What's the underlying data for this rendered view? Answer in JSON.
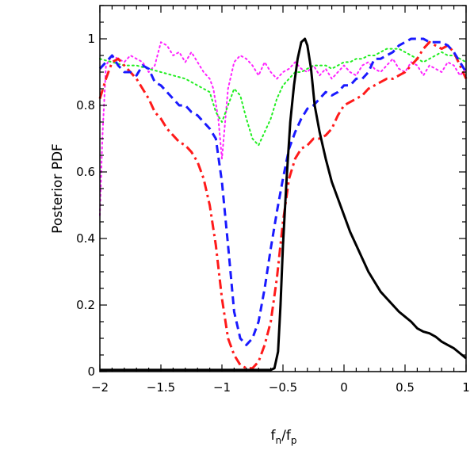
{
  "chart_data": {
    "type": "line",
    "title": "",
    "xlabel": "f_n/f_p",
    "xlabel_main": "f",
    "xlabel_sub1": "n",
    "xlabel_sep": "/f",
    "xlabel_sub2": "p",
    "ylabel": "Posterior PDF",
    "xlim": [
      -2,
      1
    ],
    "ylim": [
      0,
      1.1
    ],
    "grid": false,
    "legend": "none",
    "xticks": [
      {
        "value": -2,
        "label": "−2"
      },
      {
        "value": -1.5,
        "label": "−1.5"
      },
      {
        "value": -1,
        "label": "−1"
      },
      {
        "value": -0.5,
        "label": "−0.5"
      },
      {
        "value": 0,
        "label": "0"
      },
      {
        "value": 0.5,
        "label": "0.5"
      },
      {
        "value": 1,
        "label": "1"
      }
    ],
    "yticks": [
      {
        "value": 0,
        "label": "0"
      },
      {
        "value": 0.2,
        "label": "0.2"
      },
      {
        "value": 0.4,
        "label": "0.4"
      },
      {
        "value": 0.6,
        "label": "0.6"
      },
      {
        "value": 0.8,
        "label": "0.8"
      },
      {
        "value": 1,
        "label": "1"
      }
    ],
    "series": [
      {
        "color": "#000000",
        "style": "solid",
        "width": 3,
        "x": [
          -2,
          -1.5,
          -1,
          -0.6,
          -0.57,
          -0.54,
          -0.52,
          -0.5,
          -0.47,
          -0.44,
          -0.41,
          -0.38,
          -0.35,
          -0.32,
          -0.3,
          -0.27,
          -0.24,
          -0.2,
          -0.15,
          -0.1,
          -0.05,
          0,
          0.05,
          0.1,
          0.15,
          0.2,
          0.25,
          0.3,
          0.35,
          0.4,
          0.45,
          0.5,
          0.55,
          0.6,
          0.65,
          0.7,
          0.75,
          0.8,
          0.85,
          0.9,
          0.95,
          1
        ],
        "y": [
          0.005,
          0.005,
          0.005,
          0.005,
          0.01,
          0.06,
          0.2,
          0.38,
          0.58,
          0.75,
          0.86,
          0.94,
          0.99,
          1.0,
          0.98,
          0.91,
          0.8,
          0.72,
          0.64,
          0.57,
          0.52,
          0.47,
          0.42,
          0.38,
          0.34,
          0.3,
          0.27,
          0.24,
          0.22,
          0.2,
          0.18,
          0.165,
          0.15,
          0.13,
          0.12,
          0.115,
          0.105,
          0.09,
          0.08,
          0.07,
          0.055,
          0.04
        ]
      },
      {
        "color": "#1a1aff",
        "style": "dashed",
        "width": 3,
        "x": [
          -2,
          -1.95,
          -1.9,
          -1.85,
          -1.8,
          -1.75,
          -1.7,
          -1.65,
          -1.6,
          -1.55,
          -1.5,
          -1.45,
          -1.4,
          -1.35,
          -1.3,
          -1.25,
          -1.2,
          -1.15,
          -1.1,
          -1.05,
          -1,
          -0.95,
          -0.9,
          -0.85,
          -0.8,
          -0.75,
          -0.7,
          -0.65,
          -0.6,
          -0.55,
          -0.5,
          -0.45,
          -0.4,
          -0.35,
          -0.3,
          -0.25,
          -0.2,
          -0.15,
          -0.1,
          -0.05,
          0,
          0.05,
          0.1,
          0.15,
          0.2,
          0.25,
          0.3,
          0.35,
          0.4,
          0.45,
          0.5,
          0.55,
          0.6,
          0.65,
          0.7,
          0.75,
          0.8,
          0.85,
          0.9,
          0.95,
          1
        ],
        "y": [
          0.91,
          0.93,
          0.95,
          0.92,
          0.9,
          0.9,
          0.89,
          0.92,
          0.91,
          0.87,
          0.86,
          0.84,
          0.82,
          0.8,
          0.8,
          0.78,
          0.77,
          0.75,
          0.73,
          0.7,
          0.57,
          0.38,
          0.18,
          0.1,
          0.08,
          0.1,
          0.15,
          0.25,
          0.37,
          0.48,
          0.58,
          0.67,
          0.72,
          0.76,
          0.79,
          0.8,
          0.82,
          0.84,
          0.83,
          0.84,
          0.86,
          0.86,
          0.88,
          0.88,
          0.9,
          0.94,
          0.94,
          0.95,
          0.96,
          0.98,
          0.99,
          1.0,
          1.0,
          1.0,
          0.99,
          0.99,
          0.99,
          0.98,
          0.96,
          0.93,
          0.9
        ]
      },
      {
        "color": "#ff1a1a",
        "style": "dashdot",
        "width": 3,
        "x": [
          -2,
          -1.95,
          -1.9,
          -1.85,
          -1.8,
          -1.75,
          -1.7,
          -1.65,
          -1.6,
          -1.55,
          -1.5,
          -1.45,
          -1.4,
          -1.35,
          -1.3,
          -1.25,
          -1.2,
          -1.15,
          -1.1,
          -1.05,
          -1,
          -0.95,
          -0.9,
          -0.85,
          -0.8,
          -0.75,
          -0.7,
          -0.65,
          -0.6,
          -0.55,
          -0.5,
          -0.45,
          -0.4,
          -0.35,
          -0.3,
          -0.25,
          -0.2,
          -0.15,
          -0.1,
          -0.05,
          0,
          0.05,
          0.1,
          0.15,
          0.2,
          0.25,
          0.3,
          0.35,
          0.4,
          0.45,
          0.5,
          0.55,
          0.6,
          0.65,
          0.7,
          0.75,
          0.8,
          0.85,
          0.9,
          0.95,
          1
        ],
        "y": [
          0.82,
          0.88,
          0.93,
          0.94,
          0.92,
          0.9,
          0.88,
          0.85,
          0.82,
          0.78,
          0.76,
          0.73,
          0.71,
          0.69,
          0.68,
          0.66,
          0.63,
          0.58,
          0.5,
          0.38,
          0.22,
          0.1,
          0.05,
          0.02,
          0.01,
          0.01,
          0.03,
          0.08,
          0.15,
          0.28,
          0.45,
          0.58,
          0.64,
          0.67,
          0.68,
          0.7,
          0.7,
          0.71,
          0.73,
          0.77,
          0.8,
          0.81,
          0.82,
          0.83,
          0.85,
          0.86,
          0.87,
          0.88,
          0.88,
          0.89,
          0.9,
          0.92,
          0.94,
          0.97,
          0.99,
          0.98,
          0.97,
          0.98,
          0.96,
          0.92,
          0.88
        ]
      },
      {
        "color": "#22ee22",
        "style": "dotted",
        "width": 2,
        "x": [
          -2,
          -1.9,
          -1.8,
          -1.7,
          -1.6,
          -1.5,
          -1.4,
          -1.3,
          -1.2,
          -1.1,
          -1.05,
          -1,
          -0.95,
          -0.9,
          -0.85,
          -0.8,
          -0.75,
          -0.7,
          -0.65,
          -0.6,
          -0.55,
          -0.5,
          -0.45,
          -0.4,
          -0.35,
          -0.3,
          -0.25,
          -0.2,
          -0.15,
          -0.1,
          -0.05,
          0,
          0.05,
          0.1,
          0.15,
          0.2,
          0.25,
          0.3,
          0.35,
          0.4,
          0.45,
          0.5,
          0.55,
          0.6,
          0.65,
          0.7,
          0.75,
          0.8,
          0.85,
          0.9,
          0.95,
          1
        ],
        "y": [
          0.94,
          0.93,
          0.92,
          0.92,
          0.91,
          0.9,
          0.89,
          0.88,
          0.86,
          0.84,
          0.78,
          0.75,
          0.8,
          0.85,
          0.83,
          0.76,
          0.7,
          0.68,
          0.72,
          0.76,
          0.82,
          0.86,
          0.88,
          0.9,
          0.9,
          0.91,
          0.92,
          0.92,
          0.92,
          0.91,
          0.92,
          0.93,
          0.93,
          0.94,
          0.94,
          0.95,
          0.95,
          0.96,
          0.97,
          0.97,
          0.97,
          0.96,
          0.95,
          0.94,
          0.93,
          0.94,
          0.95,
          0.96,
          0.95,
          0.95,
          0.94,
          0.93
        ]
      },
      {
        "color": "#ff22ff",
        "style": "dotted",
        "width": 2,
        "x": [
          -2,
          -1.98,
          -1.95,
          -1.9,
          -1.85,
          -1.8,
          -1.75,
          -1.7,
          -1.65,
          -1.6,
          -1.55,
          -1.5,
          -1.45,
          -1.4,
          -1.35,
          -1.3,
          -1.25,
          -1.2,
          -1.15,
          -1.1,
          -1.07,
          -1.03,
          -1,
          -0.95,
          -0.9,
          -0.85,
          -0.8,
          -0.75,
          -0.7,
          -0.65,
          -0.6,
          -0.55,
          -0.5,
          -0.45,
          -0.4,
          -0.35,
          -0.3,
          -0.25,
          -0.2,
          -0.15,
          -0.1,
          -0.05,
          0,
          0.05,
          0.1,
          0.15,
          0.2,
          0.25,
          0.3,
          0.35,
          0.4,
          0.45,
          0.5,
          0.55,
          0.6,
          0.65,
          0.7,
          0.75,
          0.8,
          0.85,
          0.9,
          0.95,
          1
        ],
        "y": [
          0.47,
          0.7,
          0.92,
          0.95,
          0.94,
          0.93,
          0.95,
          0.94,
          0.93,
          0.9,
          0.92,
          0.99,
          0.98,
          0.95,
          0.96,
          0.93,
          0.96,
          0.93,
          0.9,
          0.88,
          0.85,
          0.76,
          0.64,
          0.85,
          0.93,
          0.95,
          0.94,
          0.92,
          0.89,
          0.93,
          0.9,
          0.88,
          0.9,
          0.91,
          0.93,
          0.91,
          0.9,
          0.92,
          0.89,
          0.91,
          0.88,
          0.9,
          0.92,
          0.9,
          0.89,
          0.92,
          0.93,
          0.91,
          0.9,
          0.92,
          0.94,
          0.91,
          0.9,
          0.93,
          0.92,
          0.89,
          0.92,
          0.91,
          0.9,
          0.93,
          0.92,
          0.89,
          0.91
        ]
      }
    ]
  }
}
